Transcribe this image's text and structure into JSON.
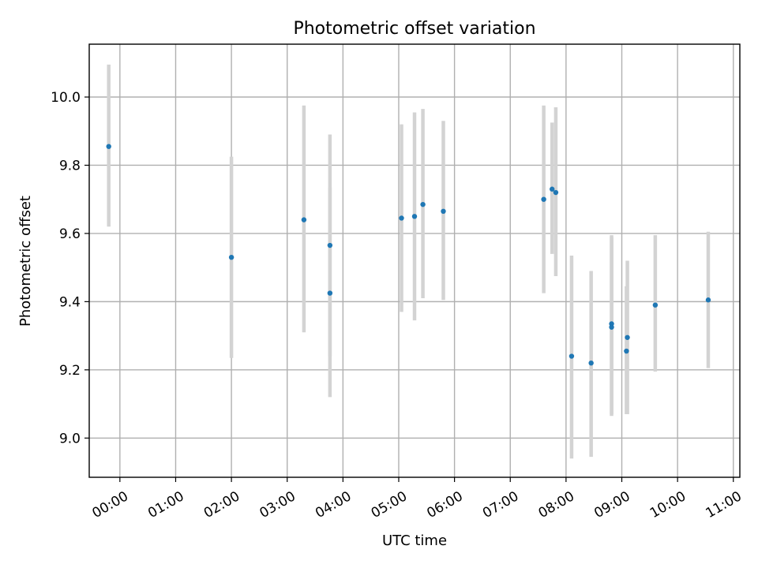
{
  "chart_data": {
    "type": "scatter",
    "title": "Photometric offset variation",
    "xlabel": "UTC time",
    "ylabel": "Photometric offset",
    "grid": true,
    "xlim": [
      "23:27",
      "11:07"
    ],
    "ylim": [
      8.885,
      10.155
    ],
    "x_ticks": [
      "00:00",
      "01:00",
      "02:00",
      "03:00",
      "04:00",
      "05:00",
      "06:00",
      "07:00",
      "08:00",
      "09:00",
      "10:00",
      "11:00"
    ],
    "y_ticks": [
      9.0,
      9.2,
      9.4,
      9.6,
      9.8,
      10.0
    ],
    "colors": {
      "point": "#1f77b4",
      "error_bar": "#d3d3d3",
      "grid": "#b0b0b0"
    },
    "points": [
      {
        "x": "23:48",
        "y": 9.855,
        "ylow": 9.62,
        "yhigh": 10.095
      },
      {
        "x": "02:00",
        "y": 9.53,
        "ylow": 9.235,
        "yhigh": 9.825
      },
      {
        "x": "03:18",
        "y": 9.64,
        "ylow": 9.31,
        "yhigh": 9.975
      },
      {
        "x": "03:46",
        "y": 9.425,
        "ylow": 9.12,
        "yhigh": 9.735
      },
      {
        "x": "03:46",
        "y": 9.565,
        "ylow": 9.24,
        "yhigh": 9.89
      },
      {
        "x": "05:03",
        "y": 9.645,
        "ylow": 9.37,
        "yhigh": 9.92
      },
      {
        "x": "05:17",
        "y": 9.65,
        "ylow": 9.345,
        "yhigh": 9.955
      },
      {
        "x": "05:26",
        "y": 9.685,
        "ylow": 9.41,
        "yhigh": 9.965
      },
      {
        "x": "05:48",
        "y": 9.665,
        "ylow": 9.405,
        "yhigh": 9.93
      },
      {
        "x": "07:36",
        "y": 9.7,
        "ylow": 9.425,
        "yhigh": 9.975
      },
      {
        "x": "07:45",
        "y": 9.73,
        "ylow": 9.54,
        "yhigh": 9.925
      },
      {
        "x": "07:49",
        "y": 9.72,
        "ylow": 9.475,
        "yhigh": 9.97
      },
      {
        "x": "08:06",
        "y": 9.24,
        "ylow": 8.94,
        "yhigh": 9.535
      },
      {
        "x": "08:27",
        "y": 9.22,
        "ylow": 8.945,
        "yhigh": 9.49
      },
      {
        "x": "08:49",
        "y": 9.335,
        "ylow": 9.065,
        "yhigh": 9.595
      },
      {
        "x": "08:49",
        "y": 9.325,
        "ylow": 9.07,
        "yhigh": 9.59
      },
      {
        "x": "09:05",
        "y": 9.255,
        "ylow": 9.07,
        "yhigh": 9.445
      },
      {
        "x": "09:06",
        "y": 9.295,
        "ylow": 9.07,
        "yhigh": 9.52
      },
      {
        "x": "09:36",
        "y": 9.39,
        "ylow": 9.195,
        "yhigh": 9.595
      },
      {
        "x": "10:33",
        "y": 9.405,
        "ylow": 9.205,
        "yhigh": 9.605
      }
    ]
  }
}
